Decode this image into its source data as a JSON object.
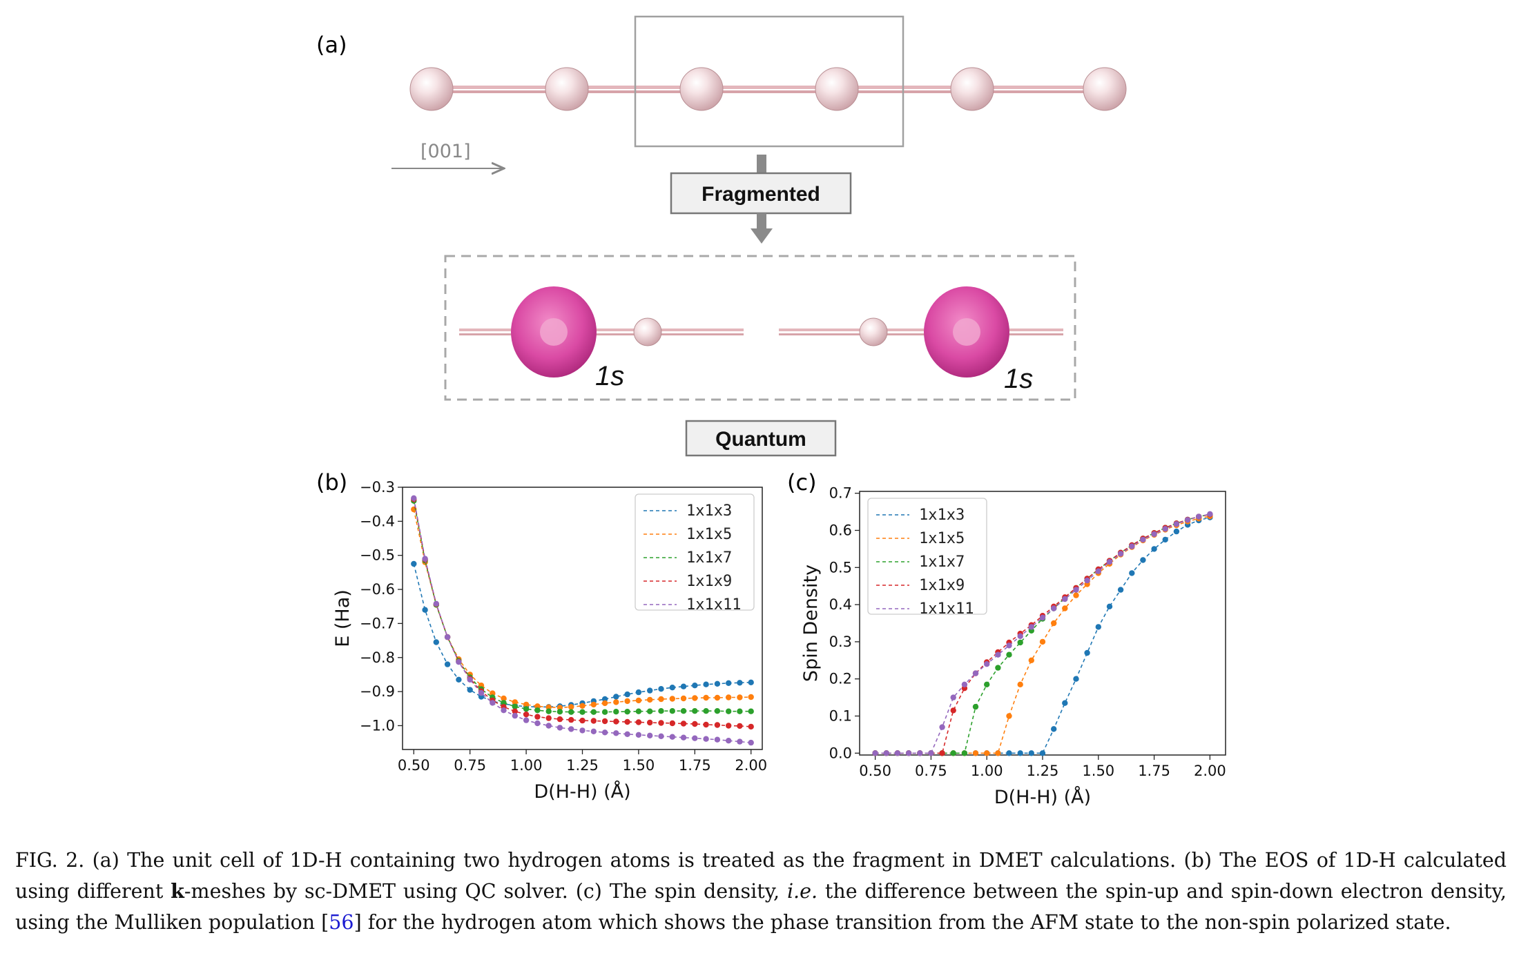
{
  "panel_a": {
    "label": "(a)",
    "direction_label": "[001]",
    "fragmented_label": "Fragmented",
    "quantum_label": "Quantum",
    "orbital_label": "1s",
    "colors": {
      "atom": "#f1d3d6",
      "bond": "#d9a9ae",
      "orbital": "#d63a9a",
      "box": "#aaaaaa"
    }
  },
  "chart_data": [
    {
      "id": "b",
      "type": "line",
      "panel_label": "(b)",
      "xlabel": "D(H-H) (Å)",
      "ylabel": "E (Ha)",
      "xlim": [
        0.45,
        2.05
      ],
      "ylim": [
        -1.07,
        -0.3
      ],
      "xticks": [
        "0.50",
        "0.75",
        "1.00",
        "1.25",
        "1.50",
        "1.75",
        "2.00"
      ],
      "yticks": [
        "−0.3",
        "−0.4",
        "−0.5",
        "−0.6",
        "−0.7",
        "−0.8",
        "−0.9",
        "−1.0"
      ],
      "ytick_values": [
        -0.3,
        -0.4,
        -0.5,
        -0.6,
        -0.7,
        -0.8,
        -0.9,
        -1.0
      ],
      "legend_position": "top-right",
      "x": [
        0.5,
        0.55,
        0.6,
        0.65,
        0.7,
        0.75,
        0.8,
        0.85,
        0.9,
        0.95,
        1.0,
        1.05,
        1.1,
        1.15,
        1.2,
        1.25,
        1.3,
        1.35,
        1.4,
        1.45,
        1.5,
        1.55,
        1.6,
        1.65,
        1.7,
        1.75,
        1.8,
        1.85,
        1.9,
        1.95,
        2.0
      ],
      "series": [
        {
          "name": "1x1x3",
          "color": "#1f77b4",
          "values": [
            -0.525,
            -0.66,
            -0.755,
            -0.82,
            -0.865,
            -0.895,
            -0.915,
            -0.928,
            -0.936,
            -0.941,
            -0.944,
            -0.945,
            -0.945,
            -0.943,
            -0.939,
            -0.934,
            -0.928,
            -0.922,
            -0.915,
            -0.908,
            -0.902,
            -0.897,
            -0.892,
            -0.888,
            -0.885,
            -0.882,
            -0.879,
            -0.877,
            -0.875,
            -0.874,
            -0.873
          ]
        },
        {
          "name": "1x1x5",
          "color": "#ff7f0e",
          "values": [
            -0.365,
            -0.52,
            -0.645,
            -0.74,
            -0.805,
            -0.85,
            -0.882,
            -0.905,
            -0.92,
            -0.931,
            -0.938,
            -0.943,
            -0.946,
            -0.947,
            -0.945,
            -0.942,
            -0.938,
            -0.934,
            -0.931,
            -0.928,
            -0.926,
            -0.924,
            -0.922,
            -0.921,
            -0.92,
            -0.919,
            -0.918,
            -0.918,
            -0.917,
            -0.917,
            -0.916
          ]
        },
        {
          "name": "1x1x7",
          "color": "#2ca02c",
          "values": [
            -0.34,
            -0.515,
            -0.645,
            -0.74,
            -0.81,
            -0.858,
            -0.893,
            -0.917,
            -0.933,
            -0.944,
            -0.951,
            -0.955,
            -0.958,
            -0.959,
            -0.96,
            -0.96,
            -0.96,
            -0.96,
            -0.959,
            -0.959,
            -0.958,
            -0.958,
            -0.957,
            -0.957,
            -0.957,
            -0.957,
            -0.957,
            -0.957,
            -0.958,
            -0.958,
            -0.958
          ]
        },
        {
          "name": "1x1x9",
          "color": "#d62728",
          "values": [
            -0.335,
            -0.512,
            -0.643,
            -0.74,
            -0.812,
            -0.862,
            -0.899,
            -0.926,
            -0.945,
            -0.958,
            -0.967,
            -0.974,
            -0.978,
            -0.981,
            -0.983,
            -0.985,
            -0.986,
            -0.987,
            -0.988,
            -0.989,
            -0.99,
            -0.991,
            -0.992,
            -0.993,
            -0.994,
            -0.995,
            -0.997,
            -0.998,
            -1.0,
            -1.001,
            -1.003
          ]
        },
        {
          "name": "1x1x11",
          "color": "#9467bd",
          "values": [
            -0.332,
            -0.51,
            -0.642,
            -0.74,
            -0.813,
            -0.865,
            -0.904,
            -0.933,
            -0.955,
            -0.971,
            -0.984,
            -0.993,
            -1.0,
            -1.006,
            -1.01,
            -1.014,
            -1.017,
            -1.02,
            -1.022,
            -1.025,
            -1.027,
            -1.029,
            -1.031,
            -1.033,
            -1.035,
            -1.037,
            -1.039,
            -1.041,
            -1.044,
            -1.047,
            -1.05
          ]
        }
      ]
    },
    {
      "id": "c",
      "type": "line",
      "panel_label": "(c)",
      "xlabel": "D(H-H) (Å)",
      "ylabel": "Spin Density",
      "xlim": [
        0.43,
        2.07
      ],
      "ylim": [
        -0.005,
        0.705
      ],
      "xticks": [
        "0.50",
        "0.75",
        "1.00",
        "1.25",
        "1.50",
        "1.75",
        "2.00"
      ],
      "yticks": [
        "0.0",
        "0.1",
        "0.2",
        "0.3",
        "0.4",
        "0.5",
        "0.6",
        "0.7"
      ],
      "ytick_values": [
        0.0,
        0.1,
        0.2,
        0.3,
        0.4,
        0.5,
        0.6,
        0.7
      ],
      "legend_position": "top-left",
      "x": [
        0.5,
        0.55,
        0.6,
        0.65,
        0.7,
        0.75,
        0.8,
        0.85,
        0.9,
        0.95,
        1.0,
        1.05,
        1.1,
        1.15,
        1.2,
        1.25,
        1.3,
        1.35,
        1.4,
        1.45,
        1.5,
        1.55,
        1.6,
        1.65,
        1.7,
        1.75,
        1.8,
        1.85,
        1.9,
        1.95,
        2.0
      ],
      "series": [
        {
          "name": "1x1x3",
          "color": "#1f77b4",
          "values": [
            0,
            0,
            0,
            0,
            0,
            0,
            0,
            0,
            0,
            0,
            0,
            0,
            0,
            0,
            0,
            0,
            0.065,
            0.135,
            0.2,
            0.27,
            0.34,
            0.395,
            0.44,
            0.485,
            0.52,
            0.55,
            0.575,
            0.597,
            0.615,
            0.627,
            0.635
          ]
        },
        {
          "name": "1x1x5",
          "color": "#ff7f0e",
          "values": [
            0,
            0,
            0,
            0,
            0,
            0,
            0,
            0,
            0,
            0,
            0,
            0,
            0.1,
            0.185,
            0.25,
            0.3,
            0.35,
            0.39,
            0.425,
            0.455,
            0.485,
            0.51,
            0.535,
            0.555,
            0.573,
            0.588,
            0.602,
            0.614,
            0.624,
            0.632,
            0.638
          ]
        },
        {
          "name": "1x1x7",
          "color": "#2ca02c",
          "values": [
            0,
            0,
            0,
            0,
            0,
            0,
            0,
            0,
            0,
            0.125,
            0.185,
            0.23,
            0.265,
            0.298,
            0.33,
            0.362,
            0.39,
            0.418,
            0.445,
            0.47,
            0.495,
            0.518,
            0.54,
            0.56,
            0.578,
            0.593,
            0.607,
            0.619,
            0.629,
            0.637,
            0.643
          ]
        },
        {
          "name": "1x1x9",
          "color": "#d62728",
          "values": [
            0,
            0,
            0,
            0,
            0,
            0,
            0,
            0.115,
            0.175,
            0.215,
            0.245,
            0.272,
            0.298,
            0.322,
            0.345,
            0.37,
            0.395,
            0.42,
            0.445,
            0.47,
            0.495,
            0.518,
            0.54,
            0.56,
            0.578,
            0.593,
            0.607,
            0.619,
            0.629,
            0.637,
            0.643
          ]
        },
        {
          "name": "1x1x11",
          "color": "#9467bd",
          "values": [
            0,
            0,
            0,
            0,
            0,
            0,
            0.07,
            0.15,
            0.185,
            0.215,
            0.24,
            0.265,
            0.29,
            0.315,
            0.34,
            0.365,
            0.39,
            0.415,
            0.44,
            0.465,
            0.49,
            0.515,
            0.537,
            0.557,
            0.575,
            0.59,
            0.604,
            0.617,
            0.628,
            0.637,
            0.644
          ]
        }
      ]
    }
  ],
  "caption": {
    "fig_label": "FIG. 2.",
    "part1": " (a) The unit cell of 1D-H containing two hydrogen atoms is treated as the fragment in DMET calculations. (b) The EOS of 1D-H calculated using different ",
    "bold_k": "k",
    "part2": "-meshes by sc-DMET using QC solver. (c) The spin density, ",
    "ie": "i.e.",
    "part3": " the difference between the spin-up and spin-down electron density, using the Mulliken population [",
    "ref": "56",
    "part4": "] for the hydrogen atom which shows the phase transition from the AFM state to the non-spin polarized state."
  }
}
